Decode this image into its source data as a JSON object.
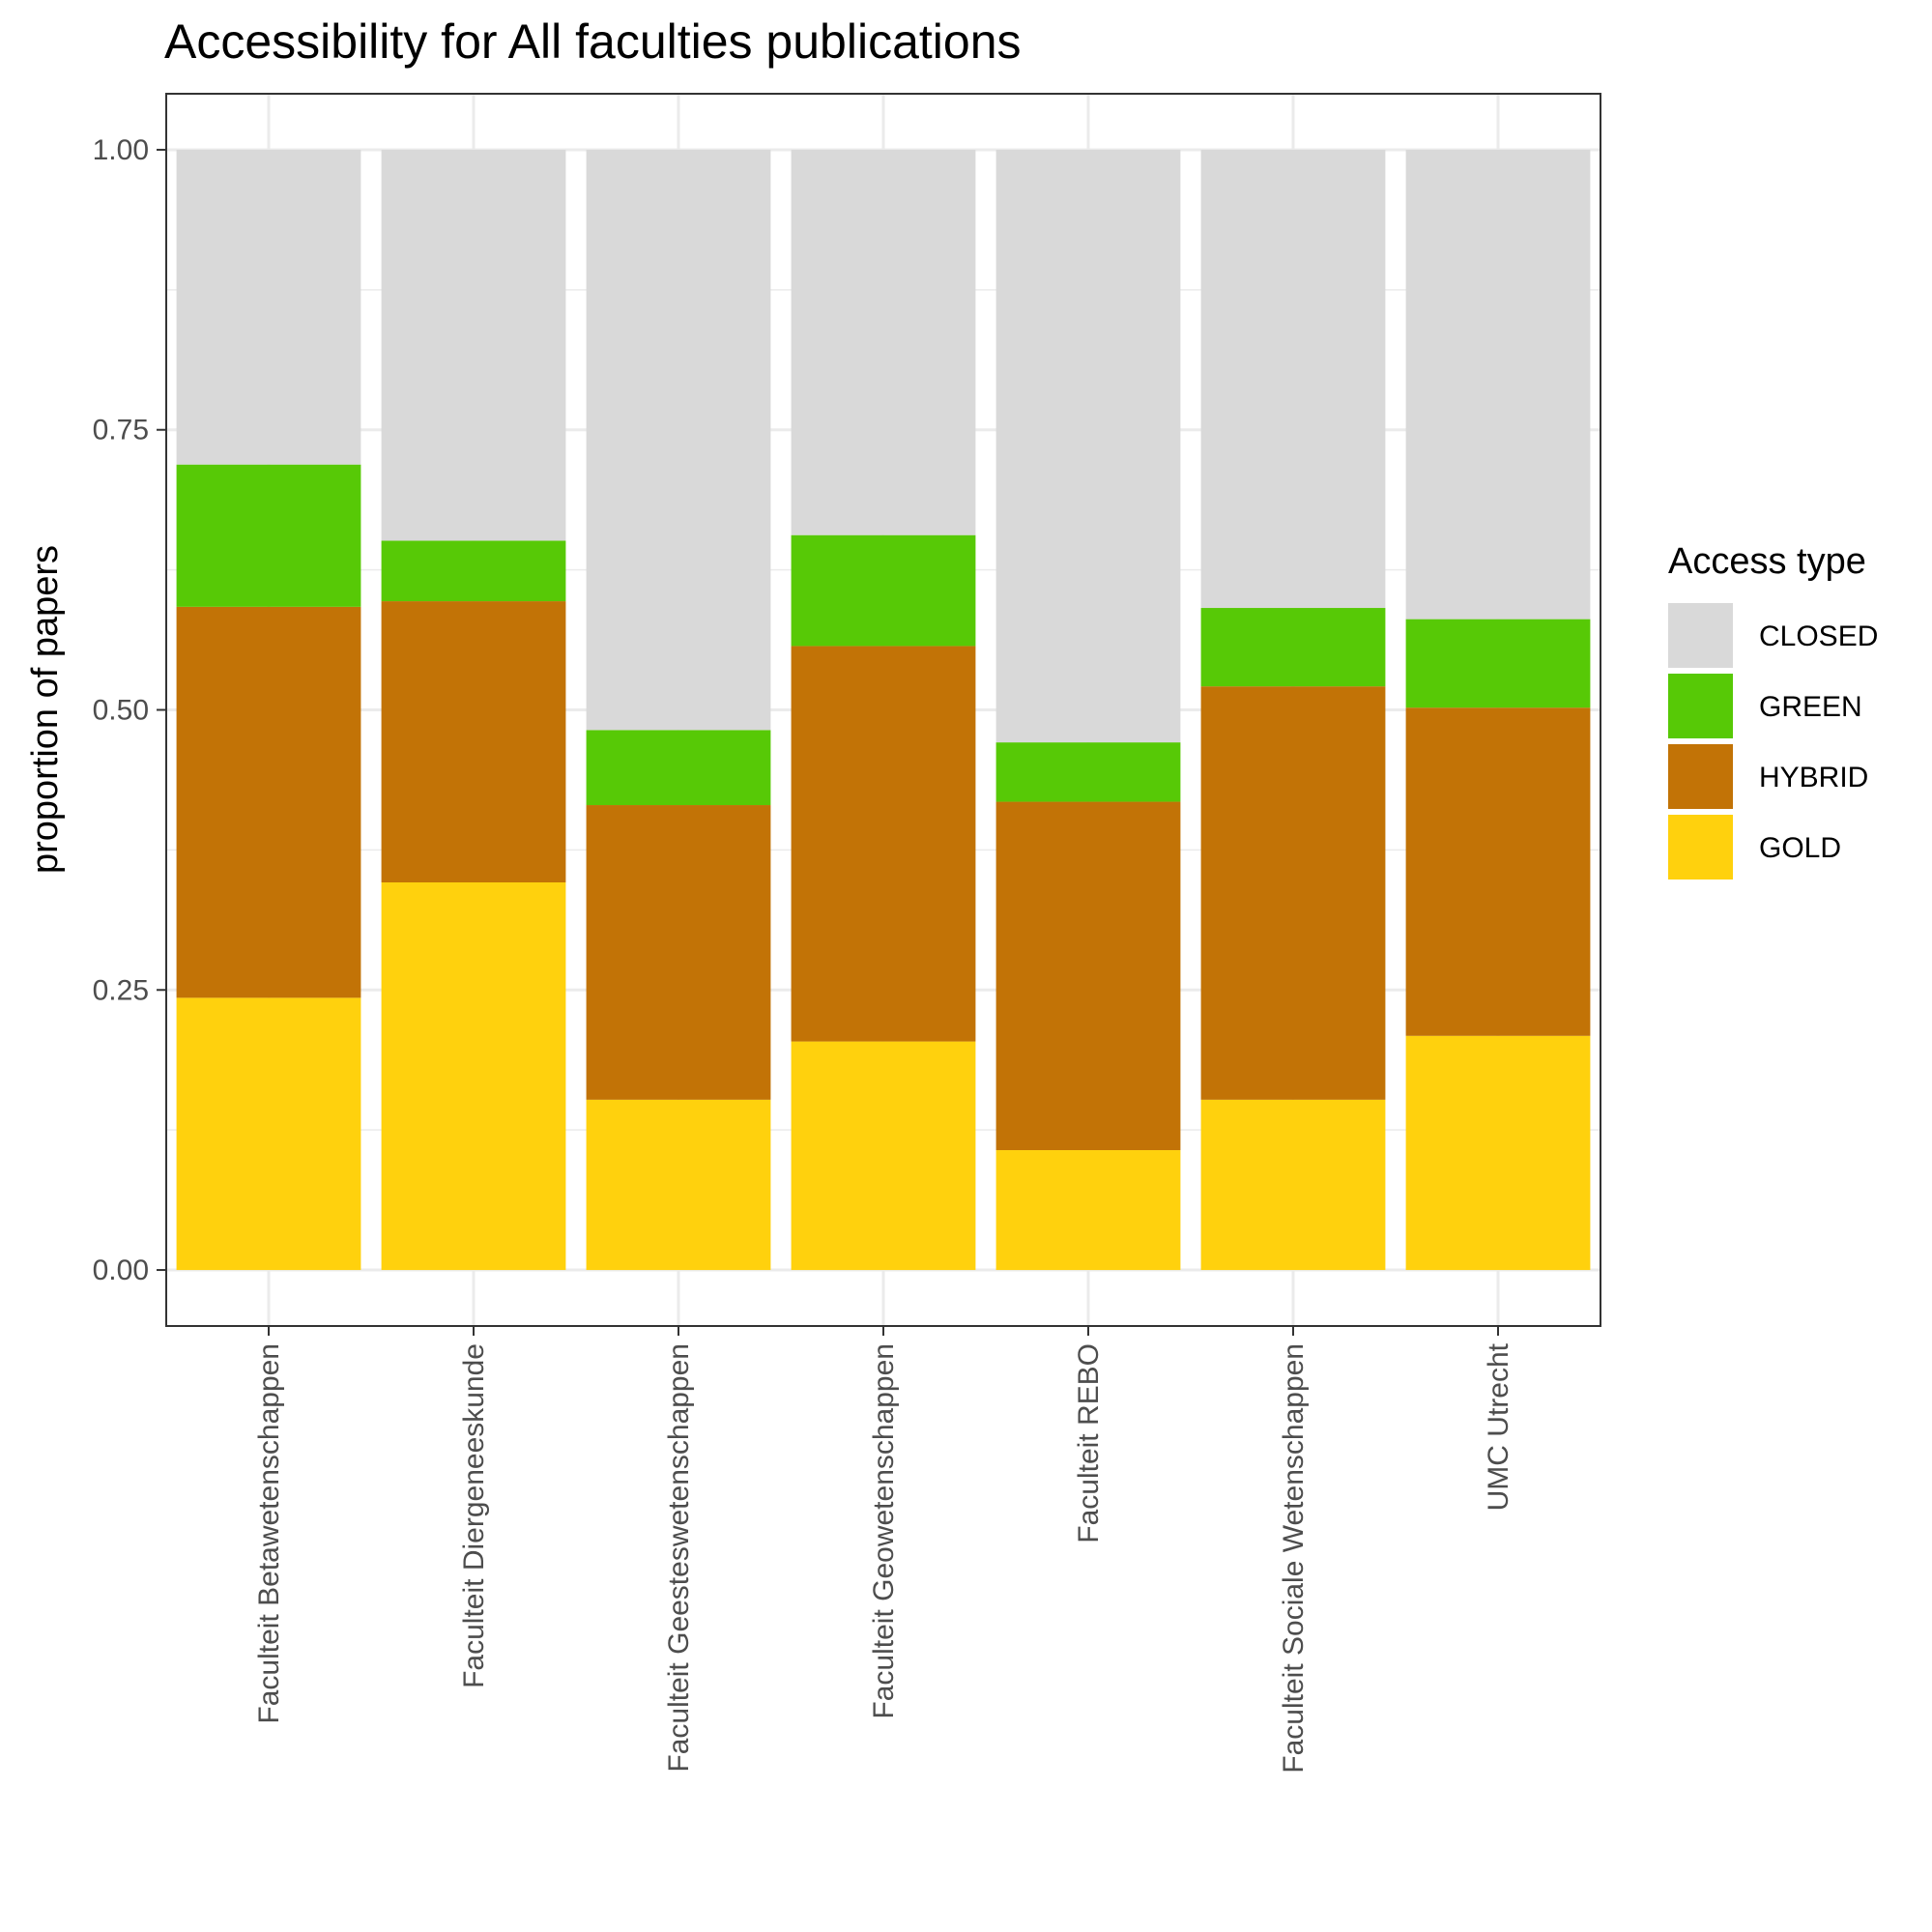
{
  "chart_data": {
    "type": "bar",
    "stacked": true,
    "title": "Accessibility for All faculties publications",
    "xlabel": "",
    "ylabel": "proportion of papers",
    "ylim": [
      -0.05,
      1.05
    ],
    "yticks": [
      "0.00",
      "0.25",
      "0.50",
      "0.75",
      "1.00"
    ],
    "ytick_values": [
      0,
      0.25,
      0.5,
      0.75,
      1.0
    ],
    "grid": true,
    "legend": {
      "title": "Access type",
      "placement": "right"
    },
    "categories": [
      "Faculteit Betawetenschappen",
      "Faculteit Diergeneeskunde",
      "Faculteit Geesteswetenschappen",
      "Faculteit Geowetenschappen",
      "Faculteit REBO",
      "Faculteit Sociale Wetenschappen",
      "UMC Utrecht"
    ],
    "series": [
      {
        "name": "GOLD",
        "color": "#ffd10d",
        "values": [
          0.243,
          0.346,
          0.152,
          0.204,
          0.107,
          0.152,
          0.209
        ]
      },
      {
        "name": "HYBRID",
        "color": "#c27306",
        "values": [
          0.349,
          0.251,
          0.263,
          0.353,
          0.311,
          0.369,
          0.293
        ]
      },
      {
        "name": "GREEN",
        "color": "#57c906",
        "values": [
          0.127,
          0.054,
          0.067,
          0.099,
          0.053,
          0.07,
          0.079
        ]
      },
      {
        "name": "CLOSED",
        "color": "#d9d9d9",
        "values": [
          0.281,
          0.349,
          0.518,
          0.344,
          0.529,
          0.409,
          0.419
        ]
      }
    ],
    "legend_order": [
      "CLOSED",
      "GREEN",
      "HYBRID",
      "GOLD"
    ]
  }
}
